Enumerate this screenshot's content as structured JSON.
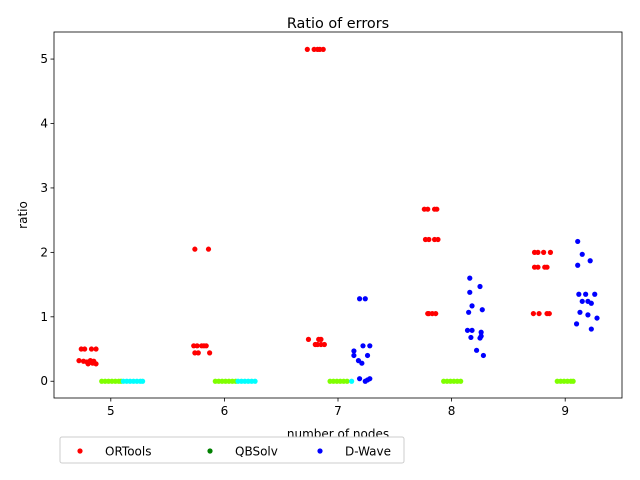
{
  "chart_data": {
    "type": "scatter",
    "title": "Ratio of errors",
    "xlabel": "number of nodes",
    "ylabel": "ratio",
    "xlim": [
      4.5,
      9.5
    ],
    "ylim": [
      -0.26,
      5.42
    ],
    "x_ticks": [
      "5",
      "6",
      "7",
      "8",
      "9"
    ],
    "y_ticks": [
      "0",
      "1",
      "2",
      "3",
      "4",
      "5"
    ],
    "grid": false,
    "legend_position": "below-left",
    "legend": [
      {
        "name": "ORTools",
        "color": "#ff0000"
      },
      {
        "name": "QBSolv",
        "color": "#008000"
      },
      {
        "name": "D-Wave",
        "color": "#0000ff"
      }
    ],
    "series": [
      {
        "name": "ORTools",
        "color": "#ff0000",
        "points": [
          [
            4.72,
            0.32
          ],
          [
            4.76,
            0.31
          ],
          [
            4.79,
            0.3
          ],
          [
            4.82,
            0.32
          ],
          [
            4.85,
            0.31
          ],
          [
            4.84,
            0.28
          ],
          [
            4.87,
            0.27
          ],
          [
            4.8,
            0.27
          ],
          [
            4.74,
            0.5
          ],
          [
            4.77,
            0.5
          ],
          [
            4.83,
            0.5
          ],
          [
            4.87,
            0.5
          ],
          [
            5.74,
            2.05
          ],
          [
            5.86,
            2.05
          ],
          [
            5.73,
            0.55
          ],
          [
            5.76,
            0.55
          ],
          [
            5.8,
            0.55
          ],
          [
            5.82,
            0.55
          ],
          [
            5.84,
            0.55
          ],
          [
            5.74,
            0.44
          ],
          [
            5.77,
            0.44
          ],
          [
            5.87,
            0.44
          ],
          [
            6.73,
            5.15
          ],
          [
            6.79,
            5.15
          ],
          [
            6.82,
            5.15
          ],
          [
            6.84,
            5.15
          ],
          [
            6.87,
            5.15
          ],
          [
            6.74,
            0.65
          ],
          [
            6.83,
            0.65
          ],
          [
            6.85,
            0.65
          ],
          [
            6.8,
            0.57
          ],
          [
            6.82,
            0.57
          ],
          [
            6.85,
            0.57
          ],
          [
            6.88,
            0.57
          ],
          [
            7.76,
            2.67
          ],
          [
            7.79,
            2.67
          ],
          [
            7.85,
            2.67
          ],
          [
            7.87,
            2.67
          ],
          [
            7.77,
            2.2
          ],
          [
            7.8,
            2.2
          ],
          [
            7.85,
            2.2
          ],
          [
            7.88,
            2.2
          ],
          [
            7.79,
            1.05
          ],
          [
            7.8,
            1.05
          ],
          [
            7.83,
            1.05
          ],
          [
            7.86,
            1.05
          ],
          [
            8.73,
            2.0
          ],
          [
            8.76,
            2.0
          ],
          [
            8.81,
            2.0
          ],
          [
            8.87,
            2.0
          ],
          [
            8.73,
            1.77
          ],
          [
            8.76,
            1.77
          ],
          [
            8.82,
            1.77
          ],
          [
            8.84,
            1.77
          ],
          [
            8.72,
            1.05
          ],
          [
            8.77,
            1.05
          ],
          [
            8.84,
            1.05
          ],
          [
            8.86,
            1.05
          ]
        ]
      },
      {
        "name": "QBSolv",
        "color": "#7fff00",
        "points": [
          [
            4.92,
            0.0
          ],
          [
            4.95,
            0.0
          ],
          [
            4.98,
            0.0
          ],
          [
            5.01,
            0.0
          ],
          [
            5.04,
            0.0
          ],
          [
            5.07,
            0.0
          ],
          [
            5.09,
            0.0
          ],
          [
            5.92,
            0.0
          ],
          [
            5.95,
            0.0
          ],
          [
            5.98,
            0.0
          ],
          [
            6.01,
            0.0
          ],
          [
            6.04,
            0.0
          ],
          [
            6.07,
            0.0
          ],
          [
            6.1,
            0.0
          ],
          [
            6.93,
            0.0
          ],
          [
            6.96,
            0.0
          ],
          [
            6.99,
            0.0
          ],
          [
            7.02,
            0.0
          ],
          [
            7.05,
            0.0
          ],
          [
            7.08,
            0.0
          ],
          [
            7.93,
            0.0
          ],
          [
            7.96,
            0.0
          ],
          [
            7.99,
            0.0
          ],
          [
            8.02,
            0.0
          ],
          [
            8.05,
            0.0
          ],
          [
            8.08,
            0.0
          ],
          [
            8.93,
            0.0
          ],
          [
            8.96,
            0.0
          ],
          [
            8.99,
            0.0
          ],
          [
            9.02,
            0.0
          ],
          [
            9.05,
            0.0
          ],
          [
            9.07,
            0.0
          ]
        ]
      },
      {
        "name": "",
        "color": "#00ffff",
        "points": [
          [
            5.11,
            0.0
          ],
          [
            5.14,
            0.0
          ],
          [
            5.17,
            0.0
          ],
          [
            5.2,
            0.0
          ],
          [
            5.23,
            0.0
          ],
          [
            5.26,
            0.0
          ],
          [
            5.28,
            0.0
          ],
          [
            6.12,
            0.0
          ],
          [
            6.15,
            0.0
          ],
          [
            6.18,
            0.0
          ],
          [
            6.21,
            0.0
          ],
          [
            6.24,
            0.0
          ],
          [
            6.27,
            0.0
          ],
          [
            7.12,
            0.0
          ]
        ]
      },
      {
        "name": "D-Wave",
        "color": "#0000ff",
        "points": [
          [
            7.19,
            1.28
          ],
          [
            7.24,
            1.28
          ],
          [
            7.22,
            0.55
          ],
          [
            7.28,
            0.55
          ],
          [
            7.14,
            0.47
          ],
          [
            7.14,
            0.4
          ],
          [
            7.26,
            0.4
          ],
          [
            7.18,
            0.32
          ],
          [
            7.21,
            0.28
          ],
          [
            7.19,
            0.04
          ],
          [
            7.24,
            0.0
          ],
          [
            7.26,
            0.02
          ],
          [
            7.28,
            0.04
          ],
          [
            8.16,
            1.6
          ],
          [
            8.25,
            1.47
          ],
          [
            8.16,
            1.38
          ],
          [
            8.18,
            1.17
          ],
          [
            8.27,
            1.11
          ],
          [
            8.15,
            1.07
          ],
          [
            8.14,
            0.79
          ],
          [
            8.18,
            0.79
          ],
          [
            8.26,
            0.76
          ],
          [
            8.17,
            0.68
          ],
          [
            8.25,
            0.67
          ],
          [
            8.26,
            0.7
          ],
          [
            8.22,
            0.48
          ],
          [
            8.28,
            0.4
          ],
          [
            9.11,
            2.17
          ],
          [
            9.15,
            1.97
          ],
          [
            9.22,
            1.87
          ],
          [
            9.11,
            1.8
          ],
          [
            9.12,
            1.35
          ],
          [
            9.18,
            1.35
          ],
          [
            9.26,
            1.35
          ],
          [
            9.15,
            1.24
          ],
          [
            9.2,
            1.24
          ],
          [
            9.23,
            1.21
          ],
          [
            9.13,
            1.07
          ],
          [
            9.2,
            1.03
          ],
          [
            9.28,
            0.98
          ],
          [
            9.1,
            0.89
          ],
          [
            9.23,
            0.81
          ]
        ]
      }
    ]
  }
}
